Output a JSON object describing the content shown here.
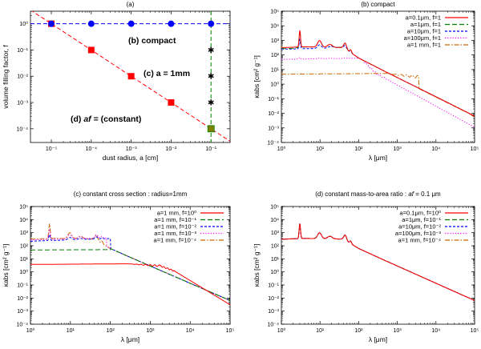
{
  "chart_data": [
    {
      "panel": "a",
      "type": "scatter",
      "title": "(a)",
      "xlabel": "dust radius, a [cm]",
      "ylabel": "volume filling factor, f",
      "xscale": "log",
      "yscale": "log",
      "xlim": [
        3e-06,
        0.3
      ],
      "ylim": [
        3e-05,
        3
      ],
      "xticks": [
        1e-05,
        0.0001,
        0.001,
        0.01,
        0.1
      ],
      "xticklabels": [
        "10⁻⁵",
        "10⁻⁴",
        "10⁻³",
        "10⁻²",
        "10⁻¹"
      ],
      "yticks": [
        0.0001,
        0.001,
        0.01,
        0.1,
        1
      ],
      "yticklabels": [
        "10⁻⁴",
        "10⁻³",
        "10⁻²",
        "10⁻¹",
        "10⁰"
      ],
      "series": [
        {
          "name": "(b) compact",
          "color": "#0000ff",
          "marker": "circle",
          "line": "dashed",
          "x": [
            1e-05,
            0.0001,
            0.001,
            0.01,
            0.1
          ],
          "y": [
            1,
            1,
            1,
            1,
            1
          ]
        },
        {
          "name": "(c) a = 1mm",
          "color": "#008000",
          "marker": "star",
          "line": "dashed",
          "x": [
            0.1,
            0.1,
            0.1,
            0.1,
            0.1
          ],
          "y": [
            1,
            0.1,
            0.01,
            0.001,
            0.0001
          ]
        },
        {
          "name": "(d) af = (constant)",
          "color": "#ff0000",
          "marker": "square",
          "line": "dashed",
          "x": [
            1e-05,
            0.0001,
            0.001,
            0.01,
            0.1
          ],
          "y": [
            1,
            0.1,
            0.01,
            0.001,
            0.0001
          ]
        }
      ],
      "annotations": [
        {
          "text": "(b) compact",
          "color": "#0000ff"
        },
        {
          "text": "(c) a = 1mm",
          "color": "#008000"
        },
        {
          "text_parts": [
            "(d) ",
            "af",
            " = (constant)"
          ],
          "color": "#ff0000"
        }
      ]
    },
    {
      "panel": "b",
      "type": "line",
      "title": "(b) compact",
      "xlabel": "λ [μm]",
      "ylabel": "κabs [cm² g⁻¹]",
      "legend_position": "top-right",
      "series": [
        {
          "name": "a=0.1μm, f=1",
          "color": "#ff0000",
          "dash": "solid",
          "curve": "compact_small"
        },
        {
          "name": "a=1μm, f=1",
          "color": "#008000",
          "dash": "long",
          "curve": "a1um"
        },
        {
          "name": "a=10μm, f=1",
          "color": "#0000ff",
          "dash": "short",
          "curve": "a10um"
        },
        {
          "name": "a=100μm, f=1",
          "color": "#ff00ff",
          "dash": "dot",
          "curve": "a100um"
        },
        {
          "name": "a=1 mm, f=1",
          "color": "#cc6600",
          "dash": "dashdot",
          "curve": "a1mm"
        }
      ]
    },
    {
      "panel": "c",
      "type": "line",
      "title": "(c) constant cross section : radius=1mm",
      "xlabel": "λ [μm]",
      "ylabel": "κabs [cm² g⁻¹]",
      "legend_position": "top-right",
      "series": [
        {
          "name": "a=1 mm, f=10⁰",
          "color": "#ff0000",
          "dash": "solid",
          "curve": "c_f0"
        },
        {
          "name": "a=1 mm, f=10⁻¹",
          "color": "#008000",
          "dash": "long",
          "curve": "c_f1"
        },
        {
          "name": "a=1 mm, f=10⁻²",
          "color": "#0000ff",
          "dash": "short",
          "curve": "c_f2"
        },
        {
          "name": "a=1 mm, f=10⁻³",
          "color": "#ff00ff",
          "dash": "dot",
          "curve": "c_f3"
        },
        {
          "name": "a=1 mm, f=10⁻⁴",
          "color": "#cc6600",
          "dash": "dashdot",
          "curve": "c_f4"
        }
      ]
    },
    {
      "panel": "d",
      "type": "line",
      "title_parts": [
        "(d) constant mass-to-area ratio : ",
        "af",
        " = 0.1 μm"
      ],
      "xlabel": "λ [μm]",
      "ylabel": "κabs [cm² g⁻¹]",
      "legend_position": "top-right",
      "series": [
        {
          "name": "a=0.1μm, f=10⁰",
          "color": "#ff0000",
          "dash": "solid",
          "curve": "small"
        },
        {
          "name": "a=1μm, f=10⁻¹",
          "color": "#008000",
          "dash": "long",
          "curve": "small"
        },
        {
          "name": "a=10μm, f=10⁻²",
          "color": "#0000ff",
          "dash": "short",
          "curve": "small"
        },
        {
          "name": "a=100μm, f=10⁻³",
          "color": "#ff00ff",
          "dash": "dot",
          "curve": "small"
        },
        {
          "name": "a=1 mm, f=10⁻⁴",
          "color": "#cc6600",
          "dash": "dashdot",
          "curve": "small"
        }
      ]
    }
  ],
  "kappa_axes": {
    "xscale": "log",
    "yscale": "log",
    "xlim": [
      1,
      100000
    ],
    "ylim": [
      0.0001,
      100000
    ],
    "xticks": [
      1,
      10,
      100,
      1000,
      10000,
      100000
    ],
    "xticklabels": [
      "10⁰",
      "10¹",
      "10²",
      "10³",
      "10⁴",
      "10⁵"
    ],
    "yticks": [
      0.0001,
      0.001,
      0.01,
      0.1,
      1,
      10,
      100,
      1000,
      10000,
      100000
    ],
    "yticklabels": [
      "10⁻⁴",
      "10⁻³",
      "10⁻²",
      "10⁻¹",
      "10⁰",
      "10¹",
      "10²",
      "10³",
      "10⁴",
      "10⁵"
    ]
  }
}
